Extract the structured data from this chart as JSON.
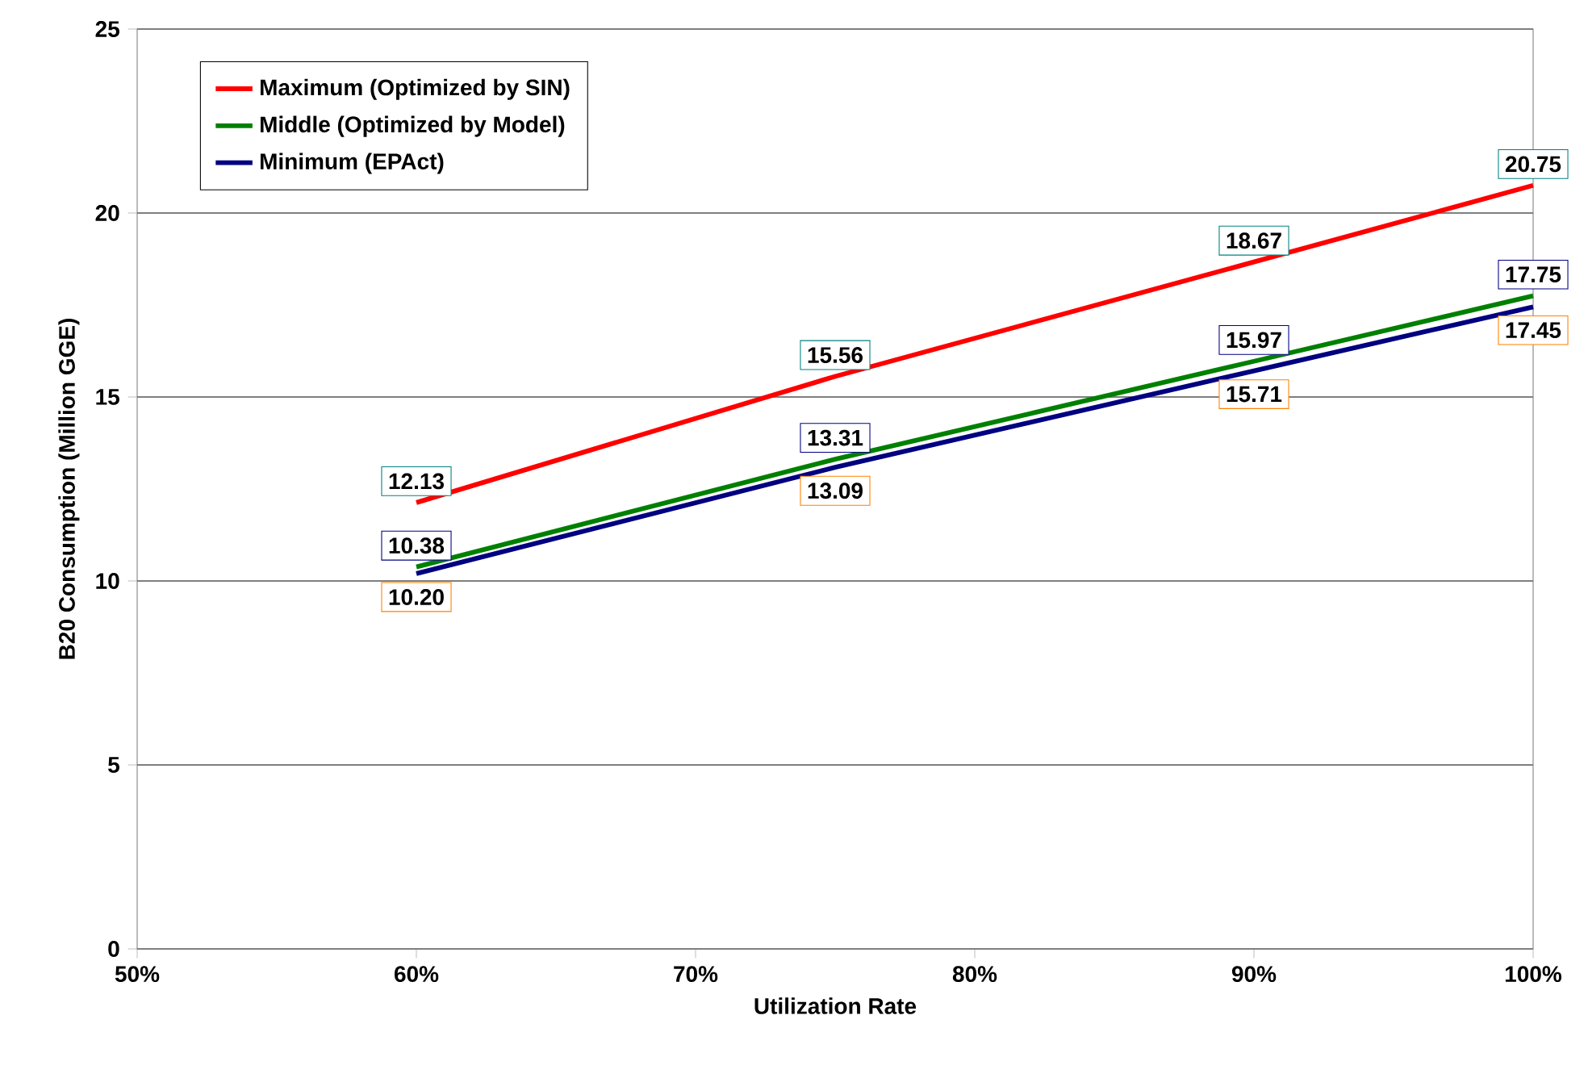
{
  "chart_data": {
    "type": "line",
    "xlabel": "Utilization Rate",
    "ylabel": "B20 Consumption (Million GGE)",
    "x": [
      60,
      75,
      90,
      100
    ],
    "series": [
      {
        "name": "Maximum (Optimized by SIN)",
        "color": "#ff0000",
        "values": [
          12.13,
          15.56,
          18.67,
          20.75
        ],
        "value_labels": [
          "12.13",
          "15.56",
          "18.67",
          "20.75"
        ]
      },
      {
        "name": "Middle (Optimized by Model)",
        "color": "#008000",
        "values": [
          10.38,
          13.31,
          15.97,
          17.75
        ],
        "value_labels": [
          "10.38",
          "13.31",
          "15.97",
          "17.75"
        ]
      },
      {
        "name": "Minimum (EPAct)",
        "color": "#000080",
        "values": [
          10.2,
          13.09,
          15.71,
          17.45
        ],
        "value_labels": [
          "10.20",
          "13.09",
          "15.71",
          "17.45"
        ]
      }
    ],
    "xlim": [
      50,
      100
    ],
    "xticks": [
      {
        "value": 50,
        "label": "50%"
      },
      {
        "value": 60,
        "label": "60%"
      },
      {
        "value": 70,
        "label": "70%"
      },
      {
        "value": 80,
        "label": "80%"
      },
      {
        "value": 90,
        "label": "90%"
      },
      {
        "value": 100,
        "label": "100%"
      }
    ],
    "ylim": [
      0,
      25
    ],
    "yticks": [
      0,
      5,
      10,
      15,
      20,
      25
    ],
    "grid": "y",
    "legend": "top left",
    "marker": "none",
    "line_style": "solid"
  }
}
